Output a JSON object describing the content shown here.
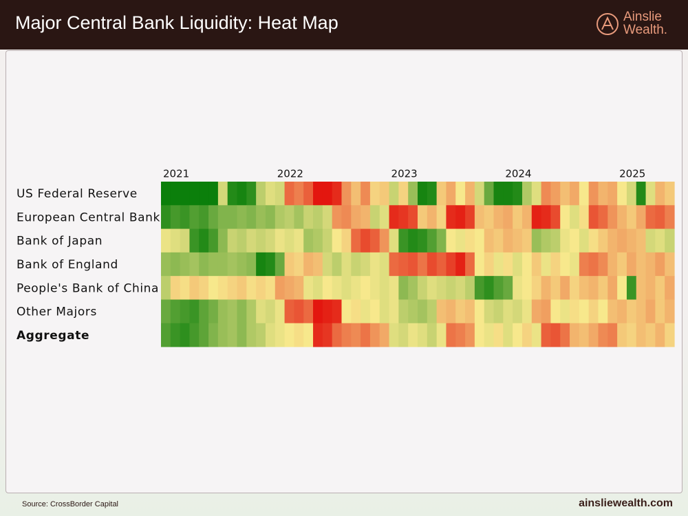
{
  "header": {
    "title": "Major Central Bank Liquidity: Heat Map",
    "logo": {
      "line1": "Ainslie",
      "line2": "Wealth."
    }
  },
  "footer": {
    "source": "Source: CrossBorder Capital",
    "site": "ainsliewealth.com"
  },
  "chart_data": {
    "type": "heatmap",
    "categories": [
      "2021",
      null,
      null,
      null,
      null,
      null,
      null,
      null,
      null,
      null,
      null,
      null,
      "2022",
      null,
      null,
      null,
      null,
      null,
      null,
      null,
      null,
      null,
      null,
      null,
      "2023",
      null,
      null,
      null,
      null,
      null,
      null,
      null,
      null,
      null,
      null,
      null,
      "2024",
      null,
      null,
      null,
      null,
      null,
      null,
      null,
      null,
      null,
      null,
      null,
      "2025",
      null,
      null,
      null,
      null,
      null
    ],
    "zlim": [
      -2,
      2
    ],
    "colormap": [
      "#e3160f",
      "#f7e88c",
      "#0b7f0b"
    ],
    "series": [
      {
        "name": "US Federal Reserve",
        "values": [
          2,
          2,
          2,
          2,
          2,
          2,
          0.3,
          1.8,
          1.9,
          1.7,
          0.5,
          0.2,
          0.3,
          -1.2,
          -1,
          -1.3,
          -2,
          -2,
          -1.8,
          -0.8,
          -0.4,
          -0.9,
          -0.2,
          -0.3,
          0.4,
          -0.2,
          0.8,
          1.9,
          1.8,
          -0.3,
          -0.6,
          0,
          -0.5,
          0.3,
          1.2,
          1.9,
          1.9,
          1.8,
          0.6,
          0.2,
          -0.9,
          -0.7,
          -0.4,
          -0.6,
          0,
          -0.8,
          -0.5,
          -0.6,
          0,
          0.3,
          1.8,
          0.2,
          -0.5,
          -0.3
        ]
      },
      {
        "name": "European Central Bank",
        "values": [
          1.7,
          1.5,
          1.6,
          1.4,
          1.5,
          1.2,
          1,
          1,
          0.9,
          1,
          0.8,
          0.9,
          0.6,
          0.5,
          0.7,
          0.4,
          0.5,
          0.3,
          -0.8,
          -0.9,
          -0.6,
          -0.5,
          0.4,
          0.2,
          -1.8,
          -1.7,
          -1.5,
          -0.3,
          -0.5,
          -0.2,
          -1.8,
          -1.9,
          -1.6,
          -0.4,
          -0.3,
          -0.5,
          -0.6,
          -0.3,
          -0.5,
          -1.9,
          -1.8,
          -1.5,
          0,
          0.2,
          -0.1,
          -1.4,
          -1.2,
          -0.8,
          -0.5,
          -0.3,
          -0.6,
          -1.2,
          -1.3,
          -1
        ]
      },
      {
        "name": "Bank of Japan",
        "values": [
          0.1,
          0.2,
          0.3,
          1.6,
          1.8,
          1.5,
          0.9,
          0.4,
          0.5,
          0.3,
          0.4,
          0.3,
          0.1,
          0.2,
          0.1,
          0.7,
          0.6,
          0.4,
          0,
          -0.2,
          -1.2,
          -1.5,
          -1.3,
          -0.8,
          0.2,
          1.6,
          1.8,
          1.7,
          1.4,
          1,
          0,
          0.1,
          -0.1,
          0,
          -0.4,
          -0.3,
          -0.5,
          -0.4,
          -0.3,
          0.8,
          0.6,
          0.5,
          0.1,
          0,
          0.2,
          -0.1,
          -0.3,
          -0.5,
          -0.6,
          -0.5,
          -0.4,
          0.3,
          0.2,
          0.4
        ]
      },
      {
        "name": "Bank of England",
        "values": [
          0.8,
          0.9,
          0.8,
          0.7,
          0.9,
          0.8,
          0.8,
          0.7,
          0.8,
          0.9,
          1.9,
          1.8,
          1.2,
          -0.3,
          -0.2,
          -0.5,
          -0.4,
          0.3,
          0.5,
          0.2,
          0.4,
          0.3,
          0.1,
          0.2,
          -1.2,
          -1.3,
          -1.4,
          -1.1,
          -1.5,
          -1.3,
          -1.6,
          -1.9,
          -1.2,
          0,
          -0.2,
          0.1,
          -0.1,
          0.2,
          0,
          -0.3,
          0.1,
          -0.2,
          0,
          0.1,
          -1,
          -1.1,
          -0.9,
          -0.5,
          -0.3,
          -0.6,
          -0.4,
          -0.5,
          -0.7,
          -0.4
        ]
      },
      {
        "name": "People's Bank of China",
        "values": [
          0.5,
          -0.2,
          -0.1,
          -0.3,
          -0.2,
          0,
          -0.1,
          -0.2,
          -0.3,
          -0.1,
          -0.2,
          -0.1,
          -0.7,
          -0.6,
          -0.5,
          0.1,
          0.2,
          0,
          0.1,
          0.2,
          0.1,
          0,
          0.1,
          0.2,
          0.1,
          0.9,
          0.7,
          0.4,
          0.2,
          0.3,
          0.4,
          0.3,
          0.5,
          1.5,
          1.7,
          1.4,
          1.2,
          0.1,
          0,
          -0.2,
          -0.5,
          -0.3,
          -0.6,
          -0.2,
          -0.4,
          -0.5,
          -0.3,
          -0.6,
          0,
          1.6,
          -0.4,
          -0.5,
          -0.3,
          -0.6
        ]
      },
      {
        "name": "Other Majors",
        "values": [
          1.2,
          1.4,
          1.5,
          1.6,
          1.3,
          1.1,
          0.8,
          0.7,
          0.9,
          0.6,
          0.2,
          0.3,
          0.1,
          -1.3,
          -1.4,
          -1.2,
          -2,
          -1.9,
          -1.8,
          0,
          -0.1,
          0.1,
          0,
          0.2,
          0.1,
          0.5,
          0.6,
          0.7,
          0.5,
          -0.4,
          -0.5,
          -0.3,
          -0.4,
          0,
          0.3,
          0.4,
          0.2,
          0.3,
          0.1,
          -0.6,
          -0.7,
          0,
          0.1,
          -0.1,
          0,
          -0.2,
          0,
          -0.4,
          -0.5,
          -0.3,
          -0.4,
          -0.6,
          -0.3,
          -0.5
        ]
      },
      {
        "name": "Aggregate",
        "values": [
          1.4,
          1.6,
          1.7,
          1.5,
          1.3,
          1,
          0.8,
          0.7,
          0.9,
          0.6,
          0.5,
          0.2,
          0.1,
          0,
          -0.1,
          0,
          -1.8,
          -1.7,
          -1.2,
          -1,
          -0.9,
          -1.1,
          -0.8,
          -0.6,
          0.2,
          0.3,
          0.1,
          0.2,
          0.4,
          0.1,
          -1.1,
          -1,
          -0.8,
          0,
          0.1,
          -0.1,
          0.2,
          0,
          -0.2,
          0.1,
          -1.3,
          -1.4,
          -1.1,
          -0.5,
          -0.4,
          -0.6,
          -0.9,
          -1,
          -0.3,
          -0.2,
          -0.4,
          -0.3,
          -0.5,
          -0.2
        ]
      }
    ]
  }
}
